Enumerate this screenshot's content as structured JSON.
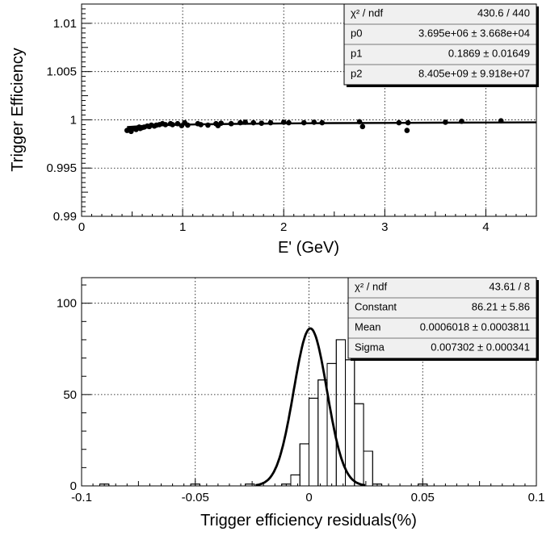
{
  "chart_data": [
    {
      "type": "scatter",
      "title": "",
      "xlabel": "E' (GeV)",
      "ylabel": "Trigger Efficiency",
      "xlim": [
        0,
        4.5
      ],
      "ylim": [
        0.99,
        1.012
      ],
      "x_ticks": [
        0,
        1,
        2,
        3,
        4
      ],
      "x_tick_labels": [
        "0",
        "1",
        "2",
        "3",
        "4"
      ],
      "y_ticks": [
        0.99,
        0.995,
        1,
        1.005,
        1.01
      ],
      "y_tick_labels": [
        "0.99",
        "0.995",
        "1",
        "1.005",
        "1.01"
      ],
      "grid": true,
      "series": [
        {
          "name": "data",
          "x": [
            0.45,
            0.47,
            0.49,
            0.5,
            0.52,
            0.54,
            0.55,
            0.57,
            0.58,
            0.6,
            0.62,
            0.65,
            0.67,
            0.69,
            0.72,
            0.74,
            0.77,
            0.8,
            0.83,
            0.88,
            0.9,
            0.95,
            0.99,
            1.02,
            1.05,
            1.15,
            1.18,
            1.25,
            1.33,
            1.35,
            1.38,
            1.48,
            1.57,
            1.62,
            1.7,
            1.78,
            1.87,
            2.0,
            2.05,
            2.2,
            2.3,
            2.38,
            2.75,
            2.78,
            3.14,
            3.22,
            3.23,
            3.6,
            3.76,
            4.15
          ],
          "y": [
            0.9989,
            0.99895,
            0.9988,
            0.99905,
            0.9991,
            0.999,
            0.99915,
            0.99925,
            0.9991,
            0.9992,
            0.99925,
            0.99935,
            0.9993,
            0.99945,
            0.99935,
            0.99945,
            0.9995,
            0.9996,
            0.9995,
            0.9996,
            0.9995,
            0.9996,
            0.9994,
            0.9997,
            0.99945,
            0.9996,
            0.9995,
            0.99945,
            0.9996,
            0.9994,
            0.99965,
            0.9996,
            0.9997,
            0.99975,
            0.9997,
            0.99965,
            0.9997,
            0.99975,
            0.9997,
            0.9997,
            0.99975,
            0.9997,
            0.9998,
            0.9993,
            0.9997,
            0.9989,
            0.9997,
            0.99975,
            0.99985,
            0.9999
          ]
        }
      ],
      "fit_curve": {
        "name": "fit",
        "x": [
          0.45,
          0.6,
          0.8,
          1.0,
          1.5,
          2.0,
          2.5,
          3.0,
          3.5,
          4.0,
          4.5
        ],
        "y": [
          0.99925,
          0.99935,
          0.99945,
          0.9995,
          0.99958,
          0.99963,
          0.99966,
          0.99968,
          0.9997,
          0.99972,
          0.99974
        ]
      },
      "stats": [
        {
          "label": "χ² / ndf",
          "value": "430.6 / 440"
        },
        {
          "label": "p0",
          "value": "3.695e+06 ± 3.668e+04"
        },
        {
          "label": "p1",
          "value": "0.1869 ± 0.01649"
        },
        {
          "label": "p2",
          "value": "8.405e+09 ± 9.918e+07"
        }
      ]
    },
    {
      "type": "histogram",
      "title": "",
      "xlabel": "Trigger efficiency residuals(%)",
      "ylabel": "",
      "xlim": [
        -0.1,
        0.1
      ],
      "ylim": [
        0,
        114
      ],
      "x_ticks": [
        -0.1,
        -0.05,
        0,
        0.05,
        0.1
      ],
      "x_tick_labels": [
        "-0.1",
        "-0.05",
        "0",
        "0.05",
        "0.1"
      ],
      "y_ticks": [
        0,
        50,
        100
      ],
      "y_tick_labels": [
        "0",
        "50",
        "100"
      ],
      "grid": true,
      "bins": {
        "edges": [
          -0.1,
          -0.096,
          -0.092,
          -0.088,
          -0.084,
          -0.08,
          -0.076,
          -0.072,
          -0.068,
          -0.064,
          -0.06,
          -0.056,
          -0.052,
          -0.048,
          -0.044,
          -0.04,
          -0.036,
          -0.032,
          -0.028,
          -0.024,
          -0.02,
          -0.016,
          -0.012,
          -0.008,
          -0.004,
          0.0,
          0.004,
          0.008,
          0.012,
          0.016,
          0.02,
          0.024,
          0.028,
          0.032,
          0.036,
          0.04,
          0.044,
          0.048,
          0.052,
          0.056,
          0.06,
          0.064,
          0.068,
          0.072,
          0.076,
          0.08,
          0.084,
          0.088,
          0.092,
          0.096,
          0.1
        ],
        "counts": [
          0,
          0,
          1,
          0,
          0,
          0,
          0,
          0,
          0,
          0,
          0,
          0,
          1,
          0,
          0,
          0,
          0,
          0,
          1,
          0,
          0,
          0,
          1,
          6,
          23,
          48,
          58,
          67,
          80,
          69,
          45,
          19,
          1,
          0,
          0,
          0,
          0,
          1,
          0,
          0,
          0,
          0,
          0,
          0,
          0,
          0,
          0,
          0,
          0,
          0
        ]
      },
      "fit": {
        "function": "gaus",
        "constant": 86.21,
        "mean": 0.0006018,
        "sigma": 0.007302
      },
      "stats": [
        {
          "label": "χ² / ndf",
          "value": "43.61 / 8"
        },
        {
          "label": "Constant",
          "value": "86.21 ± 5.86"
        },
        {
          "label": "Mean",
          "value": "0.0006018 ± 0.0003811"
        },
        {
          "label": "Sigma",
          "value": "0.007302 ± 0.000341"
        }
      ]
    }
  ]
}
